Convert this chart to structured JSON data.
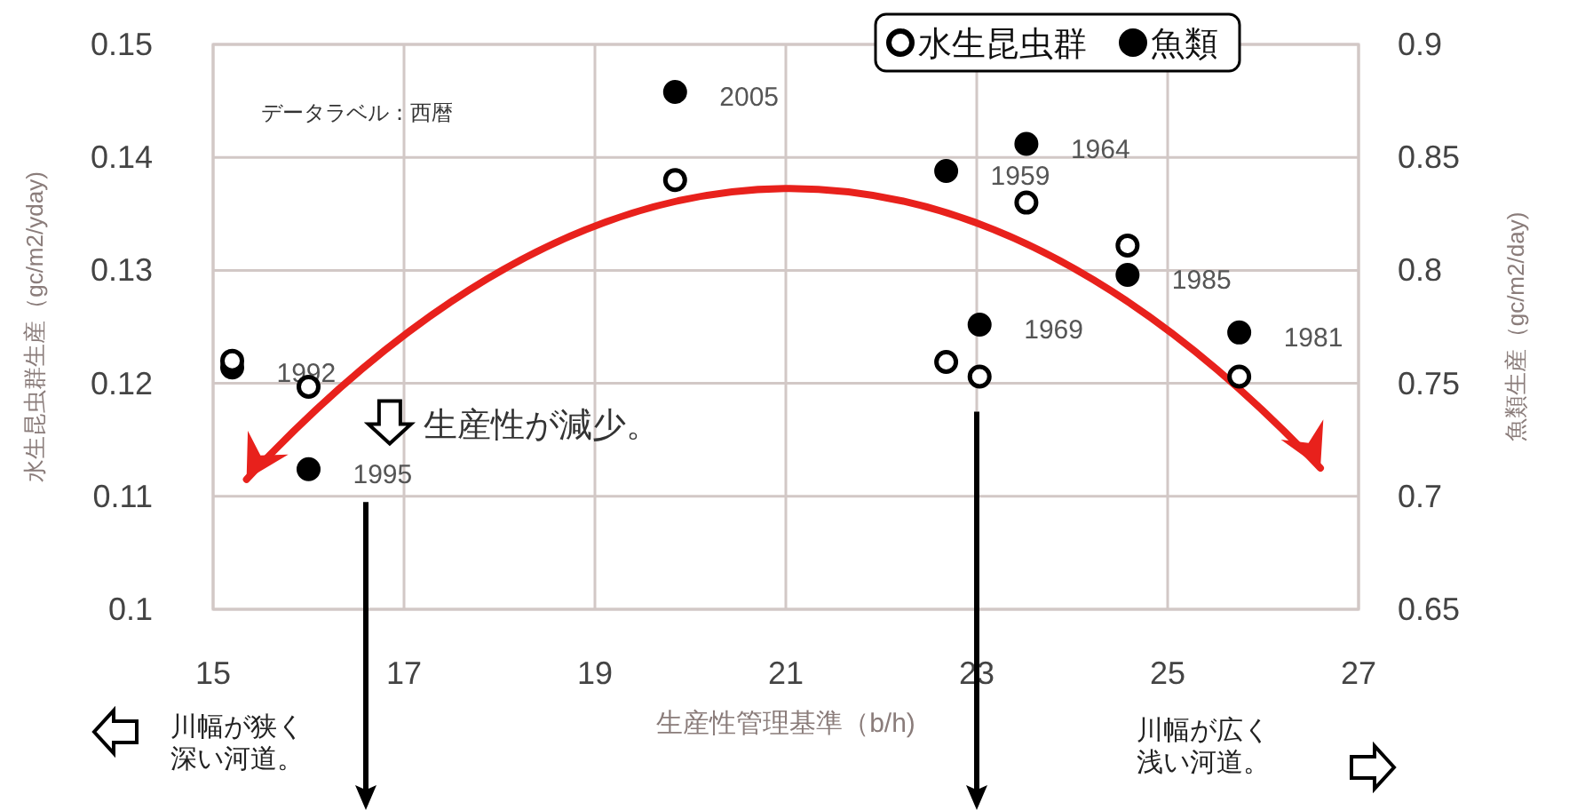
{
  "chart_data": {
    "type": "scatter",
    "xlabel": "生産性管理基準（b/h)",
    "ylabel": "水生昆虫群生産（gc/m2/yday)",
    "y2label": "魚類生産（gc/m2/day)",
    "xlim": [
      15,
      27
    ],
    "xticks": [
      15,
      17,
      19,
      21,
      23,
      25,
      27
    ],
    "ylim": [
      0.1,
      0.15
    ],
    "yticks": [
      0.1,
      0.11,
      0.12,
      0.13,
      0.14,
      0.15
    ],
    "y2lim": [
      0.65,
      0.9
    ],
    "y2ticks": [
      0.65,
      0.7,
      0.75,
      0.8,
      0.85,
      0.9
    ],
    "grid": true,
    "legend": "top right",
    "marker": "circle",
    "series": [
      {
        "name": "水生昆虫群",
        "color": "#ffffff",
        "x": [
          15.2,
          16.0,
          19.84,
          22.68,
          23.03,
          23.52,
          24.58,
          25.75
        ],
        "values": [
          0.122,
          0.1197,
          0.138,
          0.1219,
          0.1206,
          0.136,
          0.1322,
          0.1206
        ]
      },
      {
        "name": "魚類",
        "color": "#000000",
        "axis": "y2",
        "x": [
          15.2,
          16.0,
          19.84,
          22.68,
          23.03,
          23.52,
          24.58,
          25.75
        ],
        "values": [
          0.757,
          0.712,
          0.879,
          0.844,
          0.776,
          0.856,
          0.798,
          0.7725
        ]
      }
    ],
    "annotations": [
      "データラベル：西暦",
      "生産性が減少。",
      "川幅が狭く深い河道。",
      "川幅が広く浅い河道。",
      "1992",
      "1995",
      "2005",
      "1959",
      "1969",
      "1964",
      "1985",
      "1981"
    ]
  }
}
